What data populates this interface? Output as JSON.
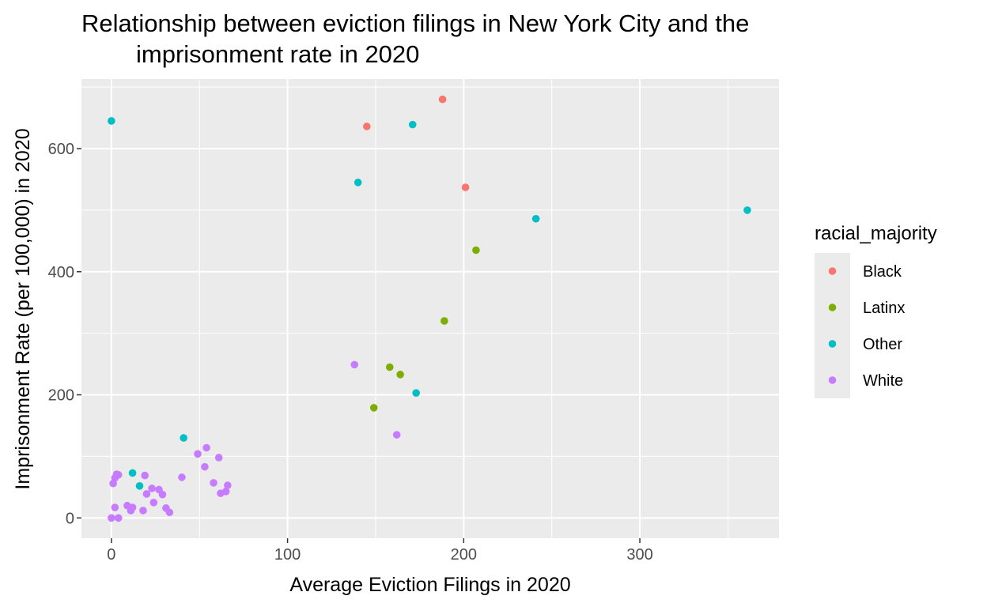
{
  "chart_data": {
    "type": "scatter",
    "title_lines": [
      "Relationship between eviction filings in New York City and the",
      "imprisonment rate in 2020"
    ],
    "xlabel": "Average Eviction Filings in 2020",
    "ylabel": "Imprisonment Rate (per 100,000) in 2020",
    "xlim": [
      -17,
      379
    ],
    "ylim": [
      -33,
      713
    ],
    "x_ticks": [
      0,
      100,
      200,
      300
    ],
    "y_ticks": [
      0,
      200,
      400,
      600
    ],
    "x_tick_labels": [
      "0",
      "100",
      "200",
      "300"
    ],
    "y_tick_labels": [
      "0",
      "200",
      "400",
      "600"
    ],
    "grid": true,
    "legend": {
      "title": "racial_majority",
      "placement": "right"
    },
    "series": [
      {
        "name": "Black",
        "color": "#F8766D",
        "points": [
          {
            "x": 188,
            "y": 680
          },
          {
            "x": 145,
            "y": 636
          },
          {
            "x": 201,
            "y": 537
          }
        ]
      },
      {
        "name": "Latinx",
        "color": "#7CAE00",
        "points": [
          {
            "x": 207,
            "y": 435
          },
          {
            "x": 189,
            "y": 320
          },
          {
            "x": 158,
            "y": 245
          },
          {
            "x": 164,
            "y": 233
          },
          {
            "x": 149,
            "y": 179
          }
        ]
      },
      {
        "name": "Other",
        "color": "#00BFC4",
        "points": [
          {
            "x": 0,
            "y": 645
          },
          {
            "x": 171,
            "y": 639
          },
          {
            "x": 140,
            "y": 545
          },
          {
            "x": 241,
            "y": 486
          },
          {
            "x": 361,
            "y": 500
          },
          {
            "x": 173,
            "y": 203
          },
          {
            "x": 41,
            "y": 130
          },
          {
            "x": 12,
            "y": 73
          },
          {
            "x": 16,
            "y": 52
          }
        ]
      },
      {
        "name": "White",
        "color": "#C77CFF",
        "points": [
          {
            "x": 138,
            "y": 249
          },
          {
            "x": 162,
            "y": 135
          },
          {
            "x": 54,
            "y": 114
          },
          {
            "x": 49,
            "y": 104
          },
          {
            "x": 61,
            "y": 98
          },
          {
            "x": 53,
            "y": 83
          },
          {
            "x": 3,
            "y": 71
          },
          {
            "x": 4,
            "y": 70
          },
          {
            "x": 19,
            "y": 69
          },
          {
            "x": 2,
            "y": 65
          },
          {
            "x": 40,
            "y": 66
          },
          {
            "x": 1,
            "y": 56
          },
          {
            "x": 58,
            "y": 57
          },
          {
            "x": 66,
            "y": 53
          },
          {
            "x": 23,
            "y": 48
          },
          {
            "x": 27,
            "y": 46
          },
          {
            "x": 65,
            "y": 43
          },
          {
            "x": 62,
            "y": 40
          },
          {
            "x": 20,
            "y": 39
          },
          {
            "x": 29,
            "y": 38
          },
          {
            "x": 24,
            "y": 25
          },
          {
            "x": 9,
            "y": 20
          },
          {
            "x": 2,
            "y": 17
          },
          {
            "x": 12,
            "y": 17
          },
          {
            "x": 31,
            "y": 16
          },
          {
            "x": 11,
            "y": 12
          },
          {
            "x": 18,
            "y": 12
          },
          {
            "x": 33,
            "y": 9
          },
          {
            "x": 0,
            "y": 0
          },
          {
            "x": 4,
            "y": 0
          }
        ]
      }
    ]
  }
}
